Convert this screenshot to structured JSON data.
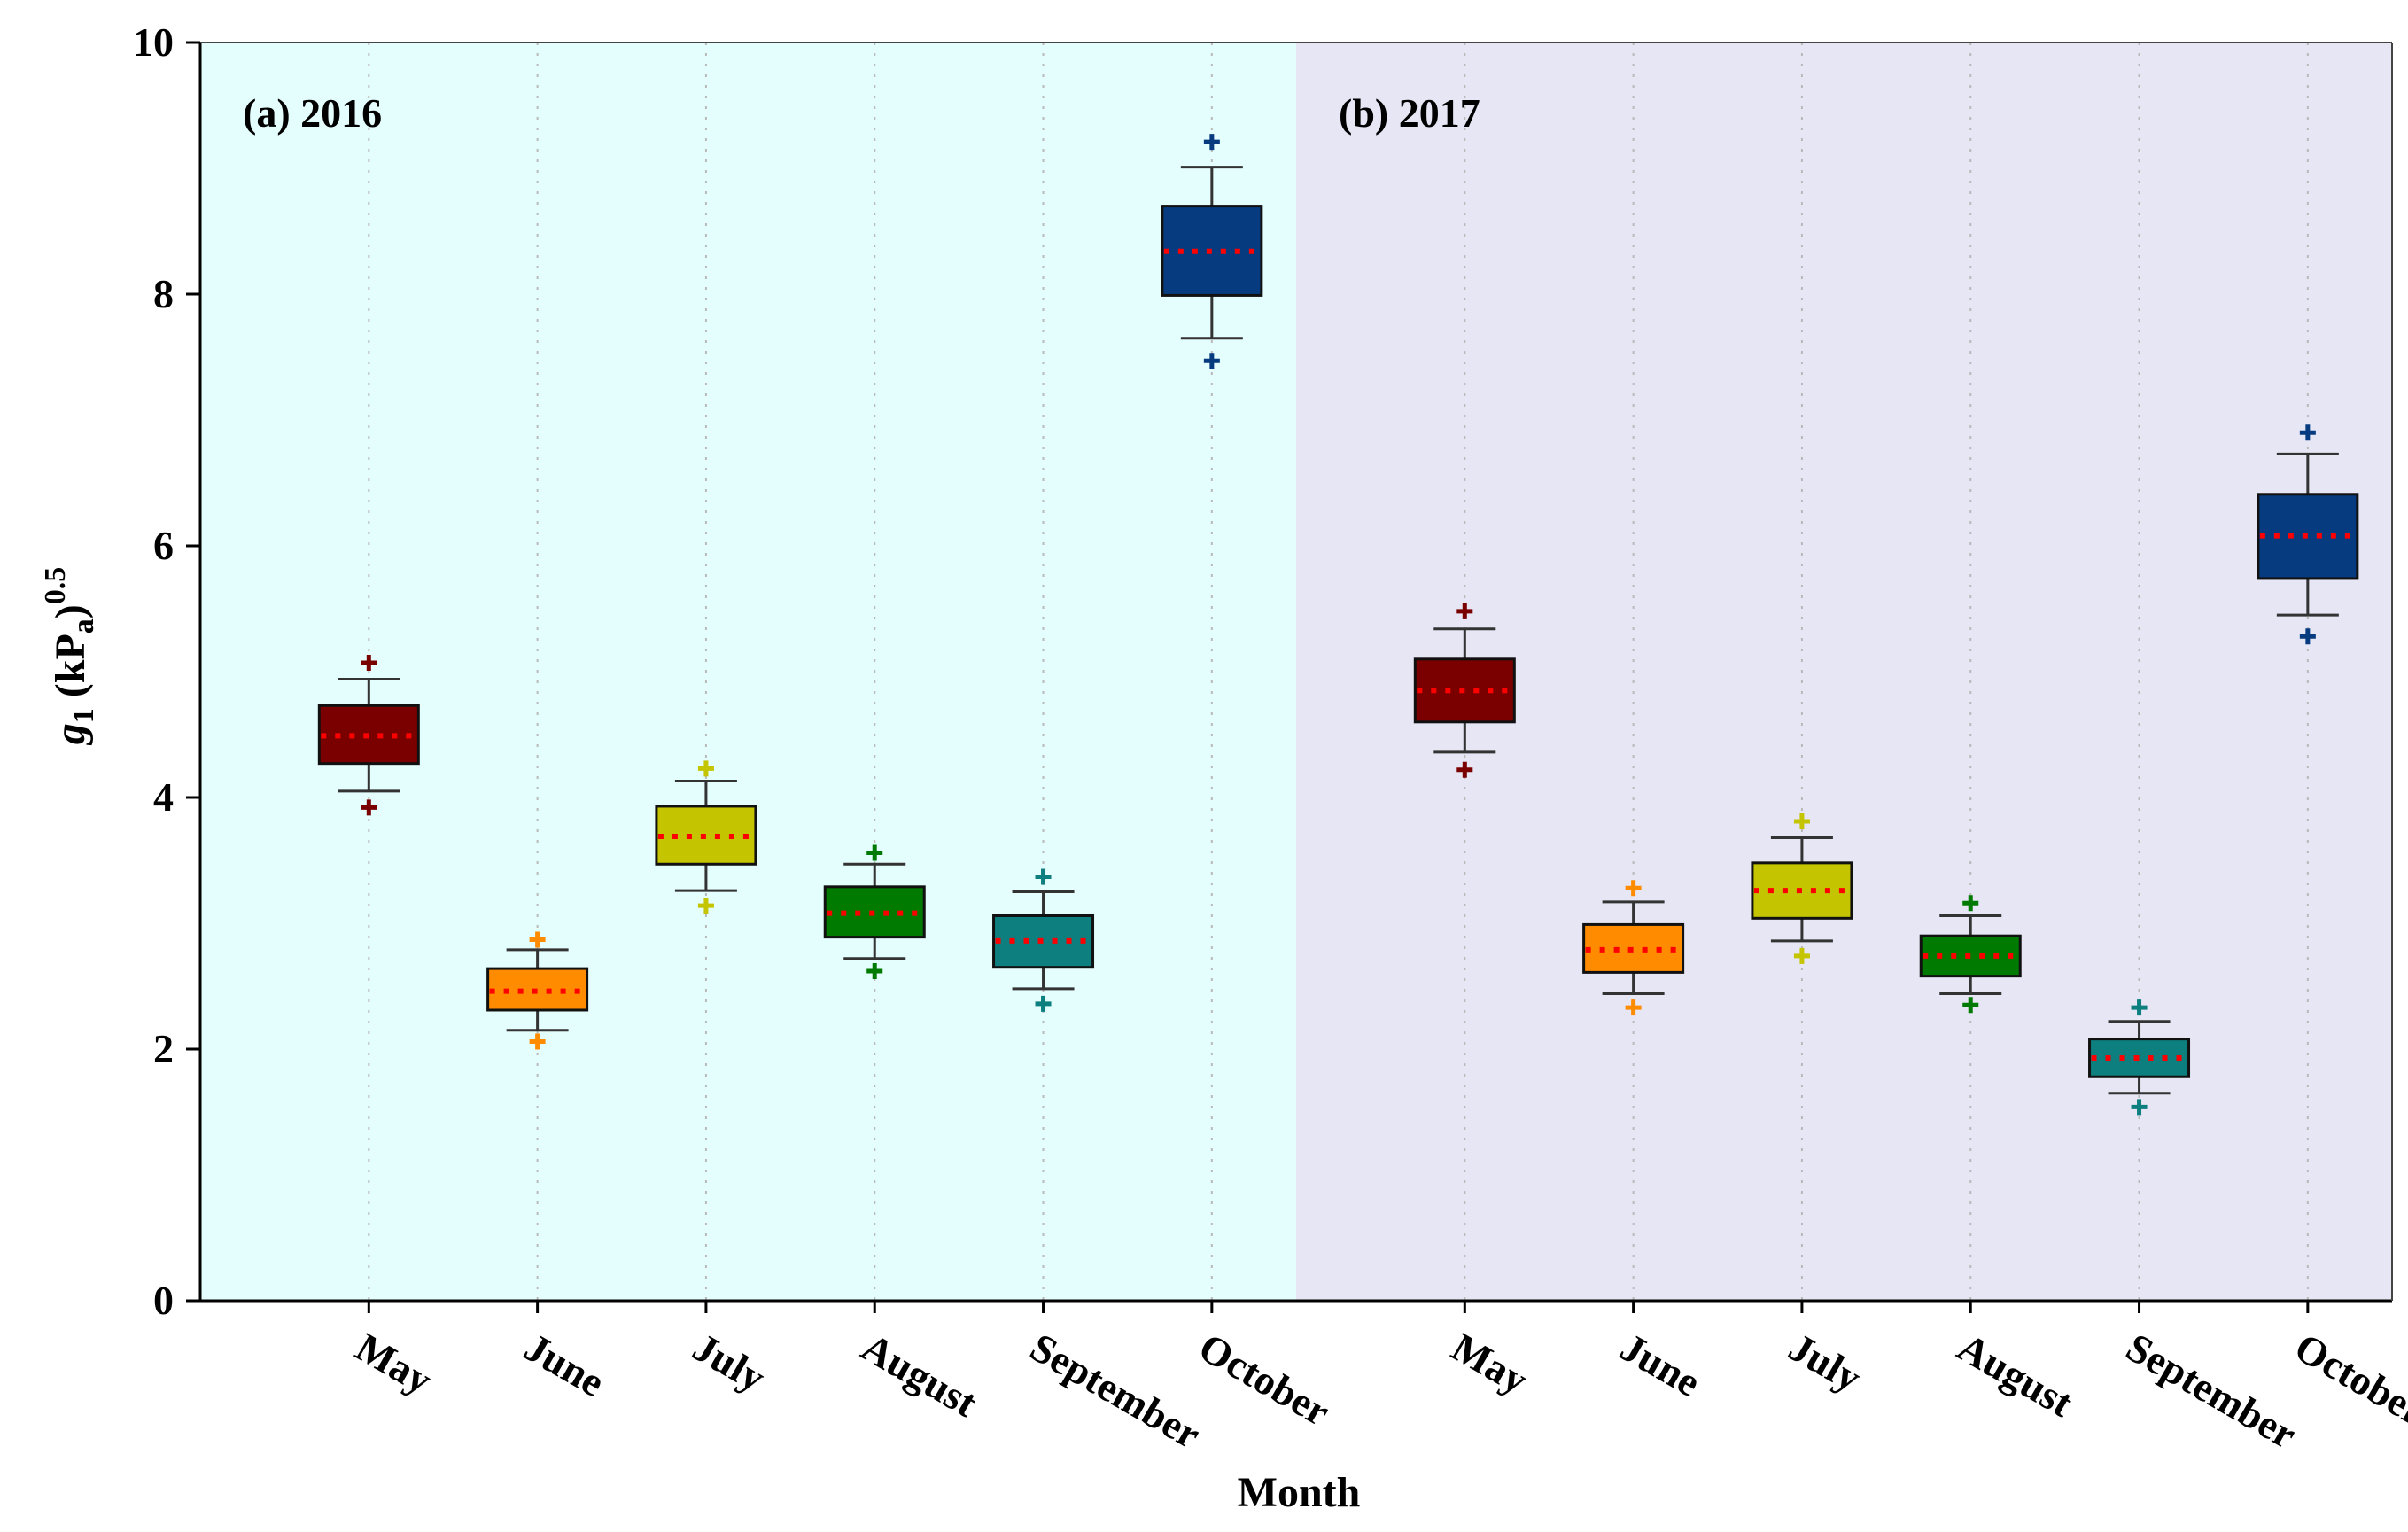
{
  "chart_data": {
    "type": "box",
    "xlabel": "Month",
    "ylabel": {
      "base": "g",
      "base_sub": "1",
      "unit_open": " (kP",
      "unit_sub": "a",
      "unit_close": ")",
      "exponent": "0.5"
    },
    "ylim": [
      0,
      10
    ],
    "yticks": [
      "0",
      "2",
      "4",
      "6",
      "8",
      "10"
    ],
    "categories": [
      "May",
      "June",
      "July",
      "August",
      "September",
      "October"
    ],
    "panels": [
      {
        "label": "(a) 2016",
        "background": "#e4fdfd",
        "boxes": [
          {
            "month": "May",
            "color": "#7a0000",
            "whisker_low": 4.05,
            "q1": 4.27,
            "mean": 4.49,
            "q3": 4.73,
            "whisker_high": 4.94,
            "outlier_low": 3.92,
            "outlier_high": 5.07
          },
          {
            "month": "June",
            "color": "#ff8c00",
            "whisker_low": 2.15,
            "q1": 2.31,
            "mean": 2.46,
            "q3": 2.64,
            "whisker_high": 2.79,
            "outlier_low": 2.06,
            "outlier_high": 2.87
          },
          {
            "month": "July",
            "color": "#c4c400",
            "whisker_low": 3.26,
            "q1": 3.47,
            "mean": 3.69,
            "q3": 3.93,
            "whisker_high": 4.13,
            "outlier_low": 3.14,
            "outlier_high": 4.23
          },
          {
            "month": "August",
            "color": "#007a00",
            "whisker_low": 2.72,
            "q1": 2.89,
            "mean": 3.08,
            "q3": 3.29,
            "whisker_high": 3.47,
            "outlier_low": 2.62,
            "outlier_high": 3.56
          },
          {
            "month": "September",
            "color": "#0e7f7f",
            "whisker_low": 2.48,
            "q1": 2.65,
            "mean": 2.86,
            "q3": 3.06,
            "whisker_high": 3.25,
            "outlier_low": 2.36,
            "outlier_high": 3.37
          },
          {
            "month": "October",
            "color": "#063b80",
            "whisker_low": 7.65,
            "q1": 7.99,
            "mean": 8.34,
            "q3": 8.7,
            "whisker_high": 9.01,
            "outlier_low": 7.47,
            "outlier_high": 9.21
          }
        ]
      },
      {
        "label": "(b) 2017",
        "background": "#e6e6f5",
        "boxes": [
          {
            "month": "May",
            "color": "#7a0000",
            "whisker_low": 4.36,
            "q1": 4.6,
            "mean": 4.85,
            "q3": 5.1,
            "whisker_high": 5.34,
            "outlier_low": 4.22,
            "outlier_high": 5.48
          },
          {
            "month": "June",
            "color": "#ff8c00",
            "whisker_low": 2.44,
            "q1": 2.61,
            "mean": 2.79,
            "q3": 2.99,
            "whisker_high": 3.17,
            "outlier_low": 2.33,
            "outlier_high": 3.28
          },
          {
            "month": "July",
            "color": "#c4c400",
            "whisker_low": 2.86,
            "q1": 3.04,
            "mean": 3.26,
            "q3": 3.48,
            "whisker_high": 3.68,
            "outlier_low": 2.74,
            "outlier_high": 3.81
          },
          {
            "month": "August",
            "color": "#007a00",
            "whisker_low": 2.44,
            "q1": 2.58,
            "mean": 2.74,
            "q3": 2.9,
            "whisker_high": 3.06,
            "outlier_low": 2.35,
            "outlier_high": 3.16
          },
          {
            "month": "September",
            "color": "#0e7f7f",
            "whisker_low": 1.65,
            "q1": 1.78,
            "mean": 1.93,
            "q3": 2.08,
            "whisker_high": 2.22,
            "outlier_low": 1.54,
            "outlier_high": 2.33
          },
          {
            "month": "October",
            "color": "#063b80",
            "whisker_low": 5.45,
            "q1": 5.74,
            "mean": 6.08,
            "q3": 6.41,
            "whisker_high": 6.73,
            "outlier_low": 5.28,
            "outlier_high": 6.9
          }
        ]
      }
    ],
    "mean_line_color": "#ff0000"
  }
}
